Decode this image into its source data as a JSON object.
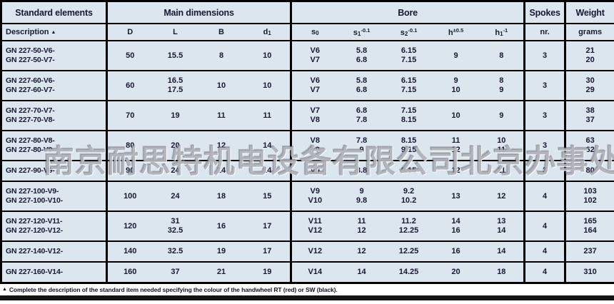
{
  "watermark": "南京耐思特机电设备有限公司北京办事处",
  "colors": {
    "cell_bg": "#dce6ee",
    "text": "#181830",
    "border": "#000000",
    "bottom_bar": "#141414"
  },
  "header": {
    "groups": [
      {
        "id": "standard-elements",
        "label": "Standard elements",
        "span": 1
      },
      {
        "id": "main-dimensions",
        "label": "Main dimensions",
        "span": 4
      },
      {
        "id": "bore",
        "label": "Bore",
        "span": 5
      },
      {
        "id": "spokes",
        "label": "Spokes",
        "span": 1
      },
      {
        "id": "weight",
        "label": "Weight",
        "span": 1
      }
    ],
    "description_label": "Description",
    "sort_icon": "▲",
    "subcols": [
      {
        "id": "D",
        "base": "D",
        "sub": "",
        "sup": ""
      },
      {
        "id": "L",
        "base": "L",
        "sub": "",
        "sup": ""
      },
      {
        "id": "B",
        "base": "B",
        "sub": "",
        "sup": ""
      },
      {
        "id": "d1",
        "base": "d",
        "sub": "1",
        "sup": ""
      },
      {
        "id": "s0",
        "base": "s",
        "sub": "0",
        "sup": ""
      },
      {
        "id": "s1",
        "base": "s",
        "sub": "1",
        "sup": "-0.1"
      },
      {
        "id": "s2",
        "base": "s",
        "sub": "2",
        "sup": "-0.1"
      },
      {
        "id": "h",
        "base": "h",
        "sub": "",
        "sup": "±0.5"
      },
      {
        "id": "h1",
        "base": "h",
        "sub": "1",
        "sup": "-1"
      },
      {
        "id": "spokes",
        "base": "nr.",
        "sub": "",
        "sup": ""
      },
      {
        "id": "weight",
        "base": "grams",
        "sub": "",
        "sup": ""
      }
    ]
  },
  "rows": [
    {
      "description": [
        "GN 227-50-V6-",
        "GN 227-50-V7-"
      ],
      "D": [
        "50"
      ],
      "L": [
        "15.5"
      ],
      "B": [
        "8"
      ],
      "d1": [
        "10"
      ],
      "s0": [
        "V6",
        "V7"
      ],
      "s1": [
        "5.8",
        "6.8"
      ],
      "s2": [
        "6.15",
        "7.15"
      ],
      "h": [
        "9"
      ],
      "h1": [
        "8"
      ],
      "spokes": [
        "3"
      ],
      "weight": [
        "21",
        "20"
      ]
    },
    {
      "description": [
        "GN 227-60-V6-",
        "GN 227-60-V7-"
      ],
      "D": [
        "60"
      ],
      "L": [
        "16.5",
        "17.5"
      ],
      "B": [
        "10"
      ],
      "d1": [
        "10"
      ],
      "s0": [
        "V6",
        "V7"
      ],
      "s1": [
        "5.8",
        "6.8"
      ],
      "s2": [
        "6.15",
        "7.15"
      ],
      "h": [
        "9",
        "10"
      ],
      "h1": [
        "8",
        "9"
      ],
      "spokes": [
        "3"
      ],
      "weight": [
        "30",
        "29"
      ]
    },
    {
      "description": [
        "GN 227-70-V7-",
        "GN 227-70-V8-"
      ],
      "D": [
        "70"
      ],
      "L": [
        "19"
      ],
      "B": [
        "11"
      ],
      "d1": [
        "11"
      ],
      "s0": [
        "V7",
        "V8"
      ],
      "s1": [
        "6.8",
        "7.8"
      ],
      "s2": [
        "7.15",
        "8.15"
      ],
      "h": [
        "10"
      ],
      "h1": [
        "9"
      ],
      "spokes": [
        "3"
      ],
      "weight": [
        "38",
        "37"
      ]
    },
    {
      "description": [
        "GN 227-80-V8-",
        "GN 227-80-V9-"
      ],
      "D": [
        "80"
      ],
      "L": [
        "20"
      ],
      "B": [
        "12"
      ],
      "d1": [
        "14"
      ],
      "s0": [
        "V8",
        "V9"
      ],
      "s1": [
        "7.8",
        "9"
      ],
      "s2": [
        "8.15",
        "9.15"
      ],
      "h": [
        "11",
        "12"
      ],
      "h1": [
        "10",
        "11"
      ],
      "spokes": [
        "3"
      ],
      "weight": [
        "63",
        "62"
      ]
    },
    {
      "description": [
        "GN 227-90-V9-"
      ],
      "D": [
        "90"
      ],
      "L": [
        "24"
      ],
      "B": [
        "14"
      ],
      "d1": [
        "14"
      ],
      "s0": [
        "V9"
      ],
      "s1": [
        "8.8"
      ],
      "s2": [
        "9.15"
      ],
      "h": [
        "12"
      ],
      "h1": [
        "11"
      ],
      "spokes": [
        "3"
      ],
      "weight": [
        "80"
      ]
    },
    {
      "description": [
        "GN 227-100-V9-",
        "GN 227-100-V10-"
      ],
      "D": [
        "100"
      ],
      "L": [
        "24"
      ],
      "B": [
        "18"
      ],
      "d1": [
        "15"
      ],
      "s0": [
        "V9",
        "V10"
      ],
      "s1": [
        "9",
        "9.8"
      ],
      "s2": [
        "9.2",
        "10.2"
      ],
      "h": [
        "13"
      ],
      "h1": [
        "12"
      ],
      "spokes": [
        "4"
      ],
      "weight": [
        "103",
        "102"
      ]
    },
    {
      "description": [
        "GN 227-120-V11-",
        "GN 227-120-V12-"
      ],
      "D": [
        "120"
      ],
      "L": [
        "31",
        "32.5"
      ],
      "B": [
        "16"
      ],
      "d1": [
        "17"
      ],
      "s0": [
        "V11",
        "V12"
      ],
      "s1": [
        "11",
        "12"
      ],
      "s2": [
        "11.2",
        "12.25"
      ],
      "h": [
        "14",
        "16"
      ],
      "h1": [
        "13",
        "14"
      ],
      "spokes": [
        "4"
      ],
      "weight": [
        "165",
        "164"
      ]
    },
    {
      "description": [
        "GN 227-140-V12-"
      ],
      "D": [
        "140"
      ],
      "L": [
        "32.5"
      ],
      "B": [
        "19"
      ],
      "d1": [
        "17"
      ],
      "s0": [
        "V12"
      ],
      "s1": [
        "12"
      ],
      "s2": [
        "12.25"
      ],
      "h": [
        "16"
      ],
      "h1": [
        "14"
      ],
      "spokes": [
        "4"
      ],
      "weight": [
        "237"
      ]
    },
    {
      "description": [
        "GN 227-160-V14-"
      ],
      "D": [
        "160"
      ],
      "L": [
        "37"
      ],
      "B": [
        "21"
      ],
      "d1": [
        "19"
      ],
      "s0": [
        "V14"
      ],
      "s1": [
        "14"
      ],
      "s2": [
        "14.25"
      ],
      "h": [
        "20"
      ],
      "h1": [
        "18"
      ],
      "spokes": [
        "4"
      ],
      "weight": [
        "310"
      ]
    }
  ],
  "footnote": {
    "icon": "▲",
    "text": "Complete the description of the standard item needed specifying the colour of the handwheel RT (red) or SW (black)."
  }
}
